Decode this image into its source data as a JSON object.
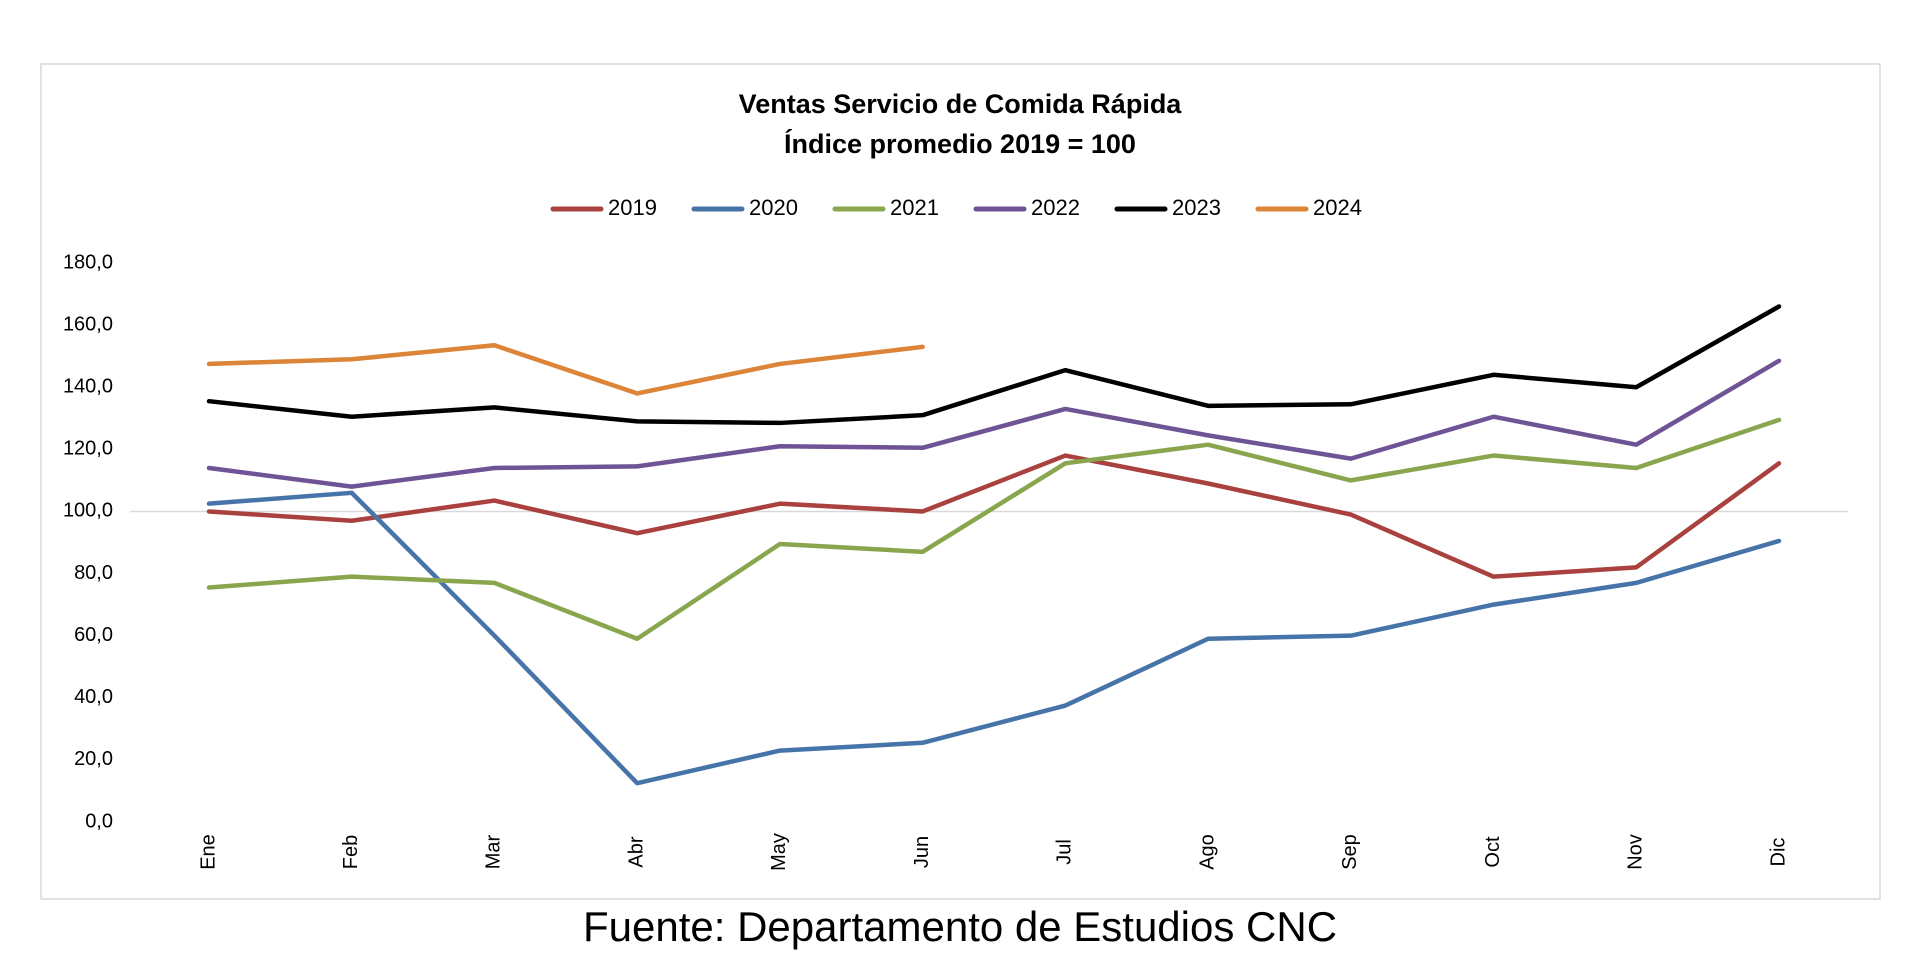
{
  "chart_data": {
    "type": "line",
    "title": [
      "Ventas Servicio de Comida Rápida",
      "Índice promedio 2019 = 100"
    ],
    "source": "Fuente: Departamento de Estudios CNC",
    "categories": [
      "Ene",
      "Feb",
      "Mar",
      "Abr",
      "May",
      "Jun",
      "Jul",
      "Ago",
      "Sep",
      "Oct",
      "Nov",
      "Dic"
    ],
    "series": [
      {
        "name": "2019",
        "color": "#a9413e",
        "values": [
          100,
          97,
          103.5,
          93,
          102.5,
          100,
          118,
          109,
          99,
          79,
          82,
          115.5
        ]
      },
      {
        "name": "2020",
        "color": "#4774a8",
        "values": [
          102.5,
          106,
          60,
          12.5,
          23,
          25.5,
          37.5,
          59,
          60,
          70,
          77,
          90.5
        ]
      },
      {
        "name": "2021",
        "color": "#89a64e",
        "values": [
          75.5,
          79,
          77,
          59,
          89.5,
          87,
          115.5,
          121.5,
          110,
          118,
          114,
          129.5
        ]
      },
      {
        "name": "2022",
        "color": "#6e5495",
        "values": [
          114,
          108,
          114,
          114.5,
          121,
          120.5,
          133,
          124.5,
          117,
          130.5,
          121.5,
          148.5
        ]
      },
      {
        "name": "2023",
        "color": "#000000",
        "values": [
          135.5,
          130.5,
          133.5,
          129,
          128.5,
          131,
          145.5,
          134,
          134.5,
          144,
          140,
          166
        ]
      },
      {
        "name": "2024",
        "color": "#dc8438",
        "values": [
          147.5,
          149,
          153.5,
          138,
          147.5,
          153,
          null,
          null,
          null,
          null,
          null,
          null
        ]
      }
    ],
    "ylim": [
      0,
      180
    ],
    "yticks": [
      {
        "value": 0,
        "label": "0,0"
      },
      {
        "value": 20,
        "label": "20,0"
      },
      {
        "value": 40,
        "label": "40,0"
      },
      {
        "value": 60,
        "label": "60,0"
      },
      {
        "value": 80,
        "label": "80,0"
      },
      {
        "value": 100,
        "label": "100,0"
      },
      {
        "value": 120,
        "label": "120,0"
      },
      {
        "value": 140,
        "label": "140,0"
      },
      {
        "value": 160,
        "label": "160,0"
      },
      {
        "value": 180,
        "label": "180,0"
      }
    ],
    "x_axis_crosses": 100,
    "grid": false,
    "legend": "top"
  }
}
